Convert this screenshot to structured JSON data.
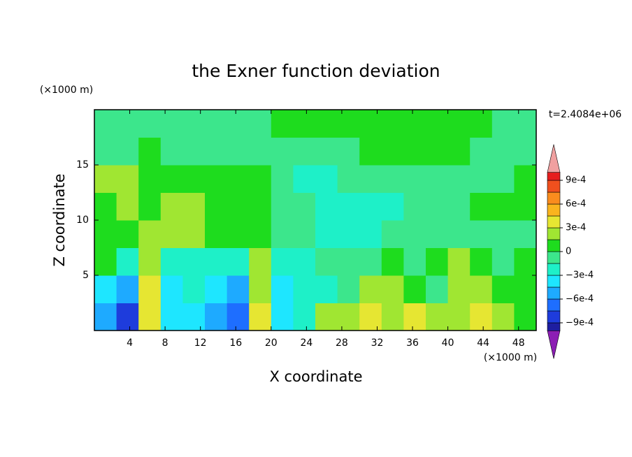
{
  "chart_data": {
    "type": "contour",
    "title": "the Exner function deviation",
    "y_unit_label": "(×1000 m)",
    "x_unit_label": "(×1000 m)",
    "time_label": "t=2.4084e+06",
    "xlabel": "X coordinate",
    "ylabel": "Z coordinate",
    "xlim": [
      0,
      50
    ],
    "ylim": [
      0,
      20
    ],
    "xticks": [
      4,
      8,
      12,
      16,
      20,
      24,
      28,
      32,
      36,
      40,
      44,
      48
    ],
    "yticks": [
      5,
      10,
      15
    ],
    "x": [
      1.25,
      3.75,
      6.25,
      8.75,
      11.25,
      13.75,
      16.25,
      18.75,
      21.25,
      23.75,
      26.25,
      28.75,
      31.25,
      33.75,
      36.25,
      38.75,
      41.25,
      43.75,
      46.25,
      48.75
    ],
    "y": [
      1.25,
      3.75,
      6.25,
      8.75,
      11.25,
      13.75,
      16.25,
      18.75
    ],
    "z": [
      [
        -0.0005,
        -0.0008,
        0.0004,
        -0.0004,
        -0.0004,
        -0.0005,
        -0.0007,
        0.0004,
        -0.0004,
        -0.0002,
        0.0002,
        0.0002,
        0.0004,
        0.0002,
        0.0004,
        0.0002,
        0.0002,
        0.0004,
        0.0002,
        7e-05
      ],
      [
        -0.0004,
        -0.0005,
        0.0004,
        -0.0004,
        -0.0002,
        -0.0004,
        -0.0005,
        0.0002,
        -0.0004,
        -0.0002,
        -0.0002,
        -7e-05,
        0.0002,
        0.0002,
        7e-05,
        -7e-05,
        0.0002,
        0.0002,
        7e-05,
        7e-05
      ],
      [
        7e-05,
        -0.0002,
        0.0002,
        -0.0002,
        -0.0002,
        -0.0002,
        -0.0002,
        0.0002,
        -0.0002,
        -0.0002,
        -7e-05,
        -7e-05,
        -7e-05,
        7e-05,
        -7e-05,
        7e-05,
        0.0002,
        7e-05,
        -7e-05,
        7e-05
      ],
      [
        7e-05,
        7e-05,
        0.0002,
        0.0002,
        0.0002,
        7e-05,
        7e-05,
        7e-05,
        -7e-05,
        -7e-05,
        -0.0002,
        -0.0002,
        -0.0002,
        -7e-05,
        -7e-05,
        -7e-05,
        -7e-05,
        -7e-05,
        -7e-05,
        -7e-05
      ],
      [
        7e-05,
        0.0002,
        7e-05,
        0.0002,
        0.0002,
        7e-05,
        7e-05,
        7e-05,
        -7e-05,
        -7e-05,
        -0.0002,
        -0.0002,
        -0.0002,
        -0.0002,
        -7e-05,
        -7e-05,
        -7e-05,
        7e-05,
        7e-05,
        7e-05
      ],
      [
        0.0002,
        0.0002,
        7e-05,
        7e-05,
        7e-05,
        7e-05,
        7e-05,
        7e-05,
        -7e-05,
        -0.0002,
        -0.0002,
        -7e-05,
        -7e-05,
        -7e-05,
        -7e-05,
        -7e-05,
        -7e-05,
        -7e-05,
        -7e-05,
        7e-05
      ],
      [
        -7e-05,
        -7e-05,
        7e-05,
        -7e-05,
        -7e-05,
        -7e-05,
        -7e-05,
        -7e-05,
        -7e-05,
        -7e-05,
        -7e-05,
        -7e-05,
        7e-05,
        7e-05,
        7e-05,
        7e-05,
        7e-05,
        -7e-05,
        -7e-05,
        -7e-05
      ],
      [
        -7e-05,
        -7e-05,
        -7e-05,
        -7e-05,
        -7e-05,
        -7e-05,
        -7e-05,
        -7e-05,
        7e-05,
        7e-05,
        7e-05,
        7e-05,
        7e-05,
        7e-05,
        7e-05,
        7e-05,
        7e-05,
        7e-05,
        -7e-05,
        -7e-05
      ]
    ],
    "colorbar": {
      "lim": [
        -0.001,
        0.001
      ],
      "levels": [
        -0.0009,
        -0.00075,
        -0.0006,
        -0.00045,
        -0.0003,
        -0.00015,
        0,
        0.00015,
        0.0003,
        0.00045,
        0.0006,
        0.00075,
        0.0009
      ],
      "colors": [
        "#1e1ea0",
        "#1e3cdc",
        "#1e6eff",
        "#1eaaff",
        "#1ee6ff",
        "#1ef0c8",
        "#3ce68c",
        "#1edc1e",
        "#a0e632",
        "#e6e632",
        "#fab41e",
        "#fa8c1e",
        "#f0501e",
        "#e61e1e"
      ],
      "under_color": "#8c1eb4",
      "over_color": "#f0a0a0",
      "ticks": [
        {
          "value": 0.0009,
          "label": "9e-4"
        },
        {
          "value": 0.0006,
          "label": "6e-4"
        },
        {
          "value": 0.0003,
          "label": "3e-4"
        },
        0,
        {
          "value": -0.0003,
          "label": "−3e-4"
        },
        {
          "value": -0.0006,
          "label": "−6e-4"
        },
        {
          "value": -0.0009,
          "label": "−9e-4"
        }
      ]
    }
  }
}
